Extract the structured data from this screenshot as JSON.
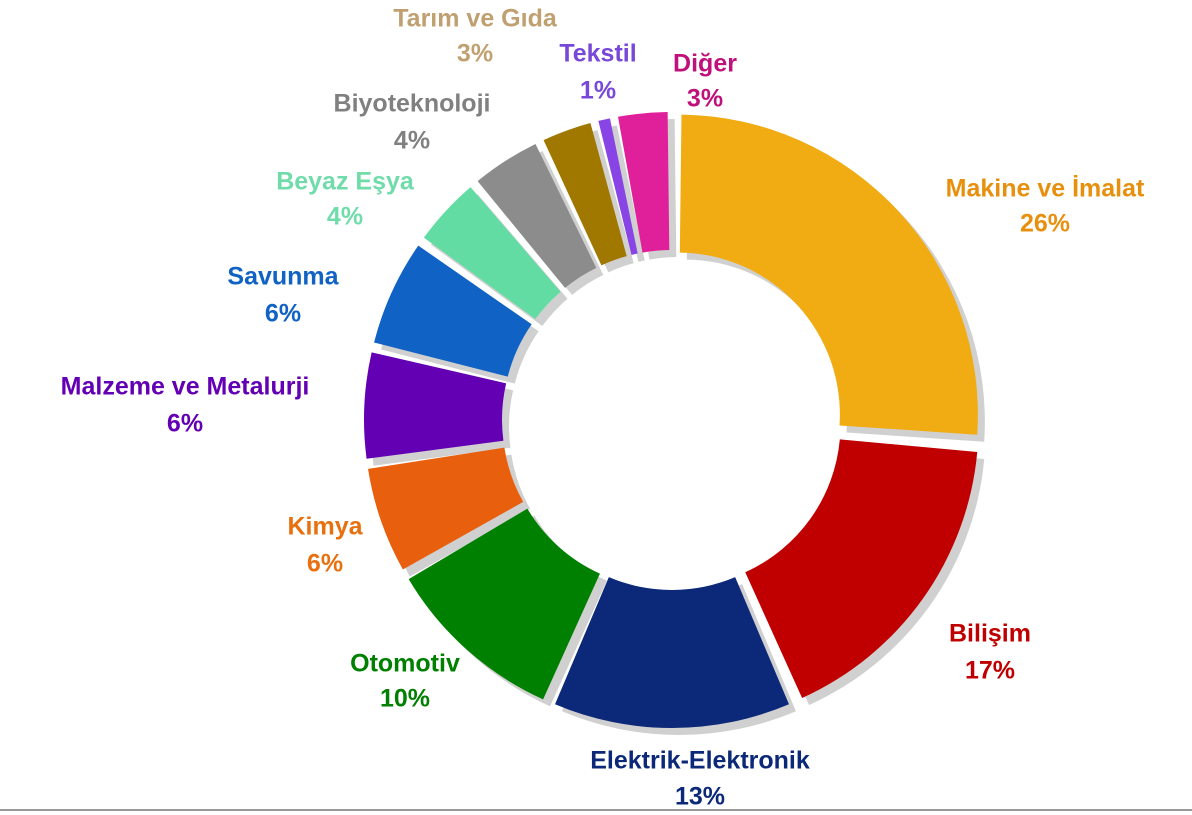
{
  "chart_data": {
    "type": "donut",
    "categories": [
      "Makine ve İmalat",
      "Bilişim",
      "Elektrik-Elektronik",
      "Otomotiv",
      "Kimya",
      "Malzeme ve Metalurji",
      "Savunma",
      "Beyaz Eşya",
      "Biyoteknoloji",
      "Tarım ve Gıda",
      "Tekstil",
      "Diğer"
    ],
    "values": [
      26,
      17,
      13,
      10,
      6,
      6,
      6,
      4,
      4,
      3,
      1,
      3
    ],
    "value_labels": [
      "26%",
      "17%",
      "13%",
      "10%",
      "6%",
      "6%",
      "6%",
      "4%",
      "4%",
      "3%",
      "1%",
      "3%"
    ],
    "colors": [
      "#f0ac12",
      "#c00000",
      "#0c2878",
      "#008000",
      "#e8600e",
      "#6400b4",
      "#1062c4",
      "#62dca2",
      "#8c8c8c",
      "#a07800",
      "#8844e4",
      "#e0209a"
    ],
    "label_colors": [
      "#e8900e",
      "#c00000",
      "#0c2878",
      "#008000",
      "#e8700e",
      "#6400b4",
      "#1062c4",
      "#70dcaa",
      "#808080",
      "#c0a070",
      "#7848d8",
      "#c0107a"
    ]
  }
}
